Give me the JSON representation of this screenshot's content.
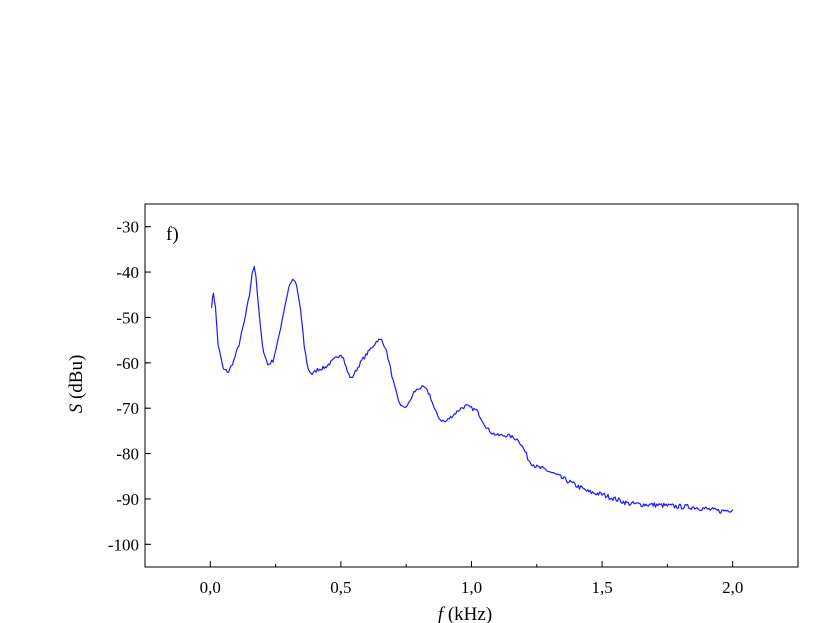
{
  "panel_label": "f)",
  "chart_data": {
    "type": "line",
    "xlabel_var": "f",
    "xlabel_unit": " (kHz)",
    "ylabel_var": "S",
    "ylabel_unit": " (dBu)",
    "xlim": [
      -0.25,
      2.25
    ],
    "ylim": [
      -105,
      -25
    ],
    "xticks": [
      0.0,
      0.5,
      1.0,
      1.5,
      2.0
    ],
    "xtick_labels": [
      "0,0",
      "0,5",
      "1,0",
      "1,5",
      "2,0"
    ],
    "yticks": [
      -30,
      -40,
      -50,
      -60,
      -70,
      -80,
      -90,
      -100
    ],
    "ytick_labels": [
      "-30",
      "-40",
      "-50",
      "-60",
      "-70",
      "-80",
      "-90",
      "-100"
    ],
    "grid": false,
    "line_color": "#1a1aff",
    "series": [
      {
        "x": [
          0.005,
          0.012,
          0.02,
          0.03,
          0.05,
          0.07,
          0.09,
          0.11,
          0.13,
          0.15,
          0.16,
          0.168,
          0.175,
          0.185,
          0.2,
          0.22,
          0.24,
          0.26,
          0.28,
          0.3,
          0.31,
          0.32,
          0.33,
          0.345,
          0.36,
          0.375,
          0.39,
          0.41,
          0.44,
          0.47,
          0.5,
          0.51,
          0.525,
          0.54,
          0.56,
          0.58,
          0.6,
          0.62,
          0.64,
          0.655,
          0.67,
          0.685,
          0.7,
          0.72,
          0.74,
          0.76,
          0.78,
          0.8,
          0.82,
          0.84,
          0.86,
          0.88,
          0.9,
          0.92,
          0.94,
          0.96,
          0.98,
          1.0,
          1.02,
          1.04,
          1.06,
          1.08,
          1.1,
          1.12,
          1.14,
          1.16,
          1.18,
          1.2,
          1.22,
          1.25,
          1.28,
          1.3,
          1.35,
          1.4,
          1.45,
          1.5,
          1.55,
          1.6,
          1.65,
          1.7,
          1.75,
          1.8,
          1.85,
          1.9,
          1.95,
          1.98,
          2.0
        ],
        "y": [
          -47.5,
          -44.5,
          -48,
          -56,
          -61.5,
          -62,
          -59.5,
          -56,
          -51,
          -45,
          -40.5,
          -38.5,
          -41,
          -48,
          -56.5,
          -60.5,
          -59.5,
          -55,
          -49,
          -43.5,
          -42,
          -41.8,
          -43,
          -48,
          -56.5,
          -61.5,
          -62.5,
          -61.5,
          -61,
          -59.5,
          -58,
          -59,
          -62,
          -63.5,
          -61.5,
          -59.5,
          -58,
          -56.5,
          -55,
          -55,
          -56.5,
          -60,
          -64,
          -68.5,
          -70,
          -69,
          -66.5,
          -65.5,
          -65.5,
          -67,
          -70.5,
          -72.5,
          -73,
          -72,
          -71,
          -70,
          -69.5,
          -70,
          -70.5,
          -72.5,
          -74.5,
          -75.5,
          -76,
          -76,
          -76,
          -76.5,
          -77,
          -79,
          -81.5,
          -83,
          -83.5,
          -84,
          -85.5,
          -87,
          -88.5,
          -89,
          -90,
          -91,
          -91.2,
          -91.3,
          -91.5,
          -91.7,
          -91.8,
          -92.2,
          -92.7,
          -92.5,
          -92.3
        ]
      }
    ]
  }
}
